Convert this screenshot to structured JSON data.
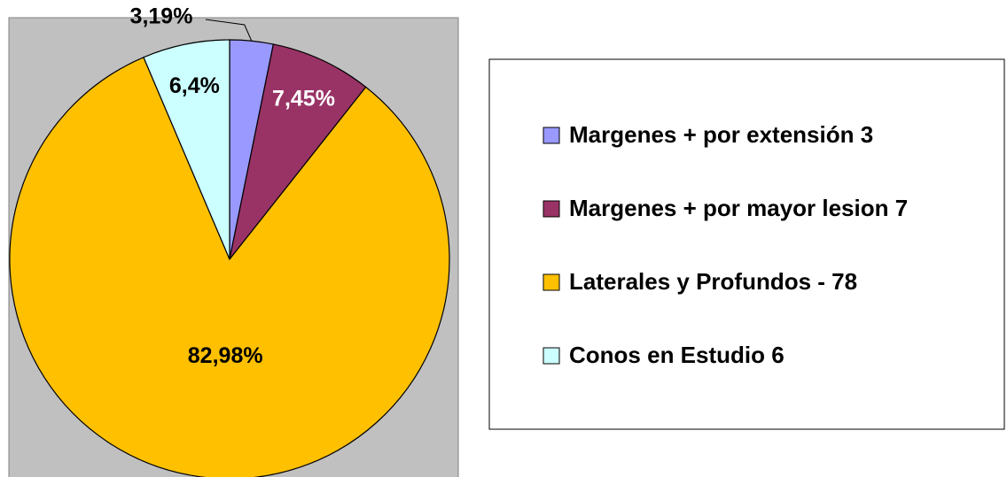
{
  "chart_data": {
    "type": "pie",
    "categories": [
      "Margenes + por extensión 3",
      "Margenes + por mayor lesion 7",
      "Laterales y Profundos - 78",
      "Conos en Estudio  6"
    ],
    "values": [
      3.19,
      7.45,
      82.98,
      6.4
    ],
    "value_labels": [
      "3,19%",
      "7,45%",
      "82,98%",
      "6,4%"
    ],
    "colors": [
      "#9999ff",
      "#993366",
      "#ffc000",
      "#ccffff"
    ],
    "label_colors": [
      "#000000",
      "#ffffff",
      "#000000",
      "#000000"
    ],
    "legend": "right"
  }
}
